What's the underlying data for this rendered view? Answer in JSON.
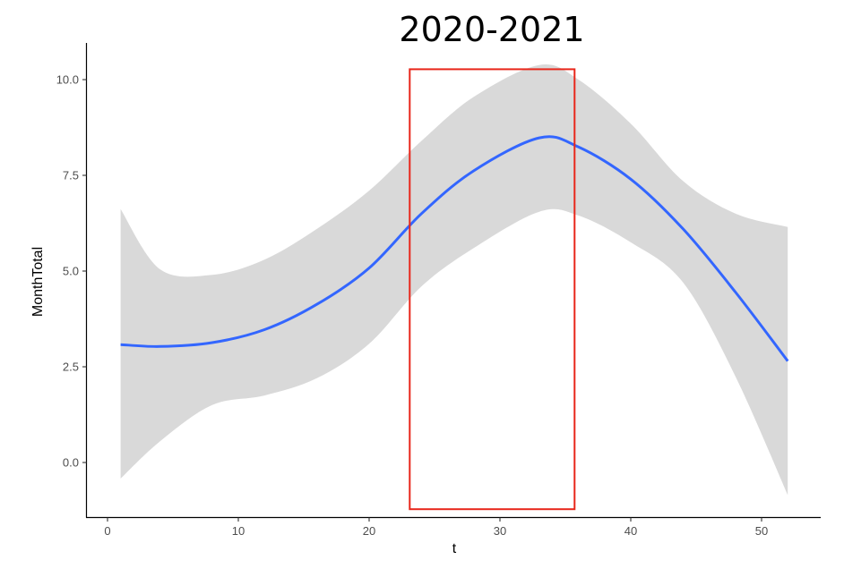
{
  "chart_data": {
    "type": "line",
    "title": "2020-2021",
    "xlabel": "t",
    "ylabel": "MonthTotal",
    "xlim": [
      1,
      52
    ],
    "ylim": [
      -1.2,
      10.3
    ],
    "x_ticks": [
      0,
      10,
      20,
      30,
      40,
      50
    ],
    "y_ticks": [
      0.0,
      2.5,
      5.0,
      7.5,
      10.0
    ],
    "x_tick_labels": [
      "0",
      "10",
      "20",
      "30",
      "40",
      "50"
    ],
    "y_tick_labels": [
      "0.0",
      "2.5",
      "5.0",
      "7.5",
      "10.0"
    ],
    "grid": false,
    "series": [
      {
        "type": "smooth",
        "x": [
          1,
          4,
          8,
          12,
          16,
          20,
          24,
          28,
          33,
          36,
          40,
          44,
          48,
          52
        ],
        "y": [
          3.08,
          3.03,
          3.13,
          3.47,
          4.13,
          5.08,
          6.5,
          7.62,
          8.48,
          8.24,
          7.4,
          6.1,
          4.45,
          2.65
        ],
        "lower": [
          -0.42,
          0.55,
          1.5,
          1.75,
          2.2,
          3.1,
          4.6,
          5.6,
          6.55,
          6.45,
          5.75,
          4.7,
          2.25,
          -0.85
        ],
        "upper": [
          6.62,
          5.05,
          4.9,
          5.3,
          6.1,
          7.1,
          8.4,
          9.55,
          10.38,
          10.0,
          8.85,
          7.35,
          6.5,
          6.15
        ],
        "color": "#3366ff",
        "band_color": "#d9d9d9"
      }
    ],
    "annotations": [
      {
        "type": "rect",
        "x_range": [
          23.1,
          35.7
        ],
        "y_range": [
          -1.22,
          10.27
        ],
        "color": "#e8261a"
      }
    ]
  }
}
